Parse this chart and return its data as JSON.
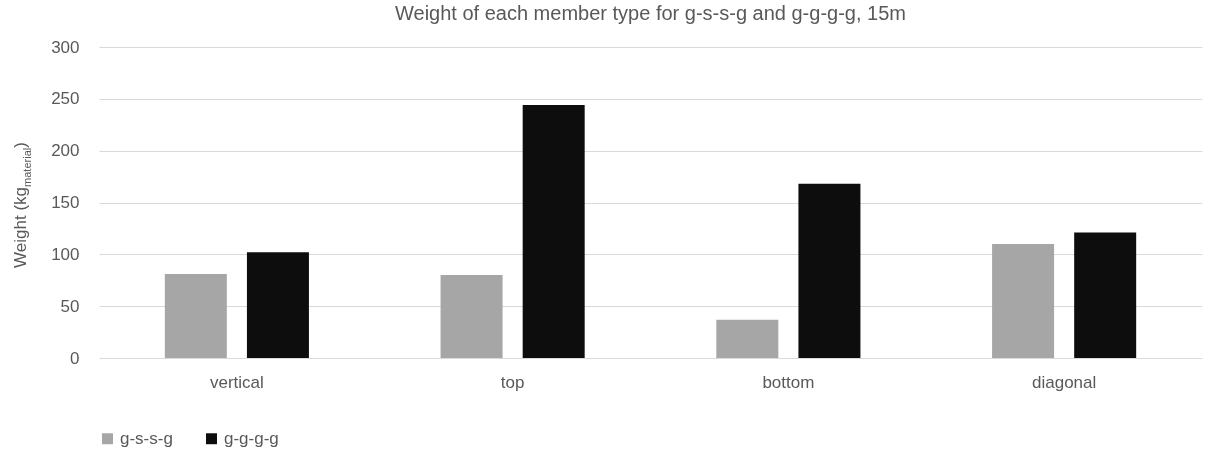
{
  "chart_data": {
    "type": "bar",
    "title": "Weight of each member type for g-s-s-g and g-g-g-g, 15m",
    "ylabel": "Weight (kg$_{material}$)",
    "categories": [
      "vertical",
      "top",
      "bottom",
      "diagonal"
    ],
    "series": [
      {
        "name": "g-s-s-g",
        "color": "#a6a6a6",
        "values": [
          81,
          80,
          37,
          110
        ]
      },
      {
        "name": "g-g-g-g",
        "color": "#0d0d0d",
        "values": [
          102,
          244,
          168,
          121
        ]
      }
    ],
    "ylim": [
      0,
      300
    ],
    "yticks": [
      0,
      50,
      100,
      150,
      200,
      250,
      300
    ],
    "grid": "y",
    "legend": "bottom"
  }
}
